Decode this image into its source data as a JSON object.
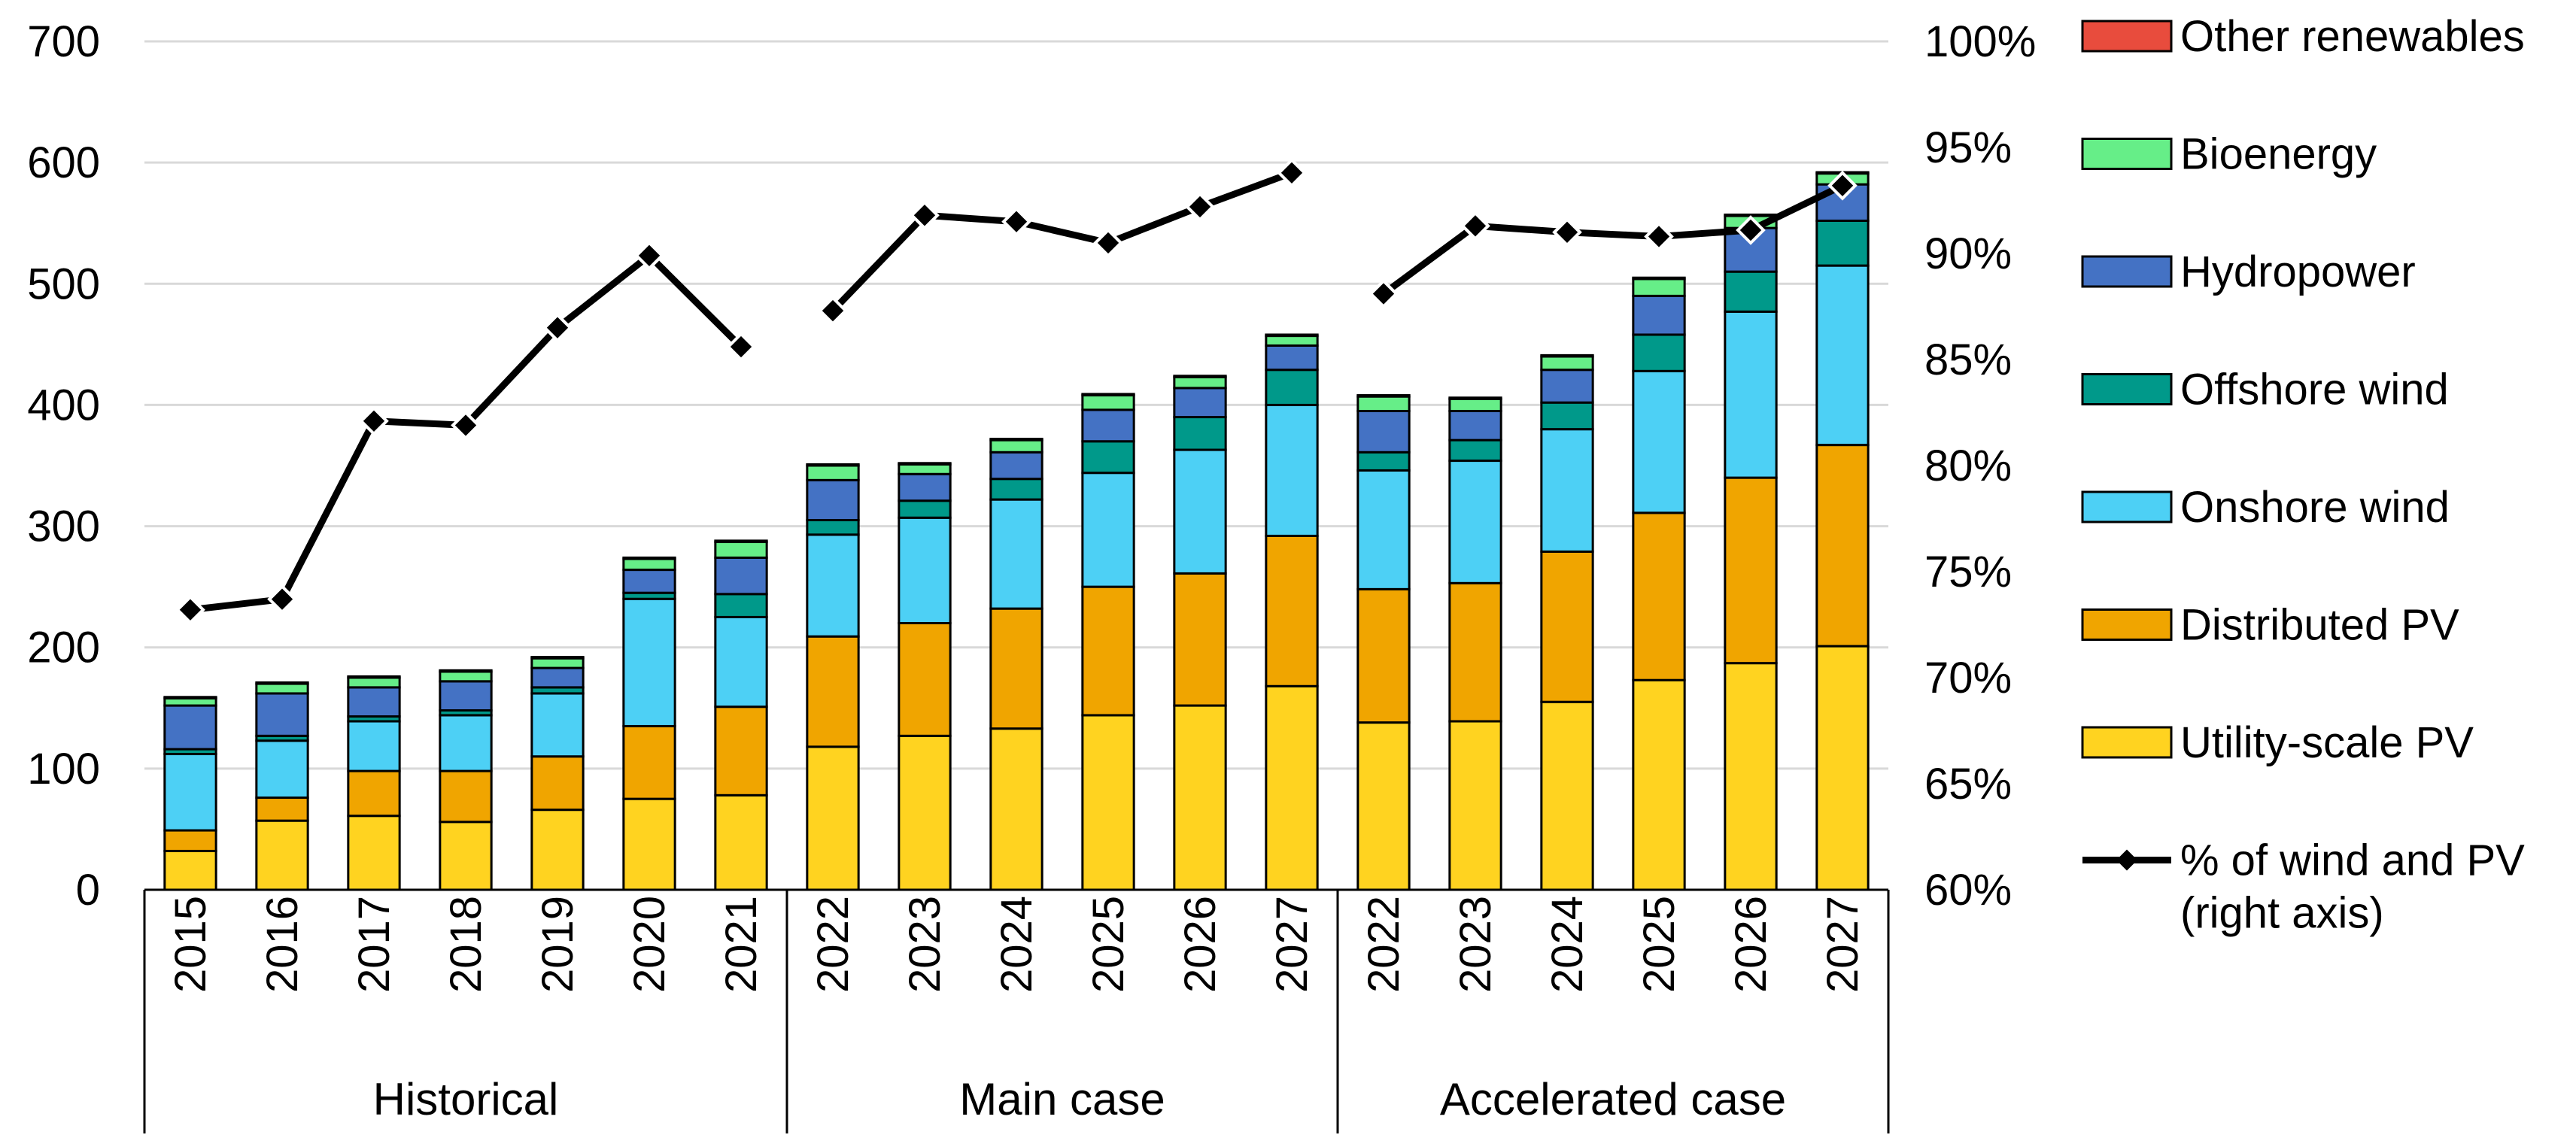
{
  "chart_data": {
    "type": "bar",
    "stacked": true,
    "title": "",
    "xlabel": "",
    "ylabel": "",
    "ylim": [
      0,
      700
    ],
    "y_ticks": [
      "0",
      "100",
      "200",
      "300",
      "400",
      "500",
      "600",
      "700"
    ],
    "y2lim": [
      60,
      100
    ],
    "y2_ticks": [
      "60%",
      "65%",
      "70%",
      "75%",
      "80%",
      "85%",
      "90%",
      "95%",
      "100%"
    ],
    "grid": true,
    "legend_position": "right",
    "categories": [
      "2015",
      "2016",
      "2017",
      "2018",
      "2019",
      "2020",
      "2021",
      "2022",
      "2023",
      "2024",
      "2025",
      "2026",
      "2027",
      "2022",
      "2023",
      "2024",
      "2025",
      "2026",
      "2027"
    ],
    "groups": [
      {
        "label": "Historical",
        "count": 7
      },
      {
        "label": "Main case",
        "count": 6
      },
      {
        "label": "Accelerated case",
        "count": 6
      }
    ],
    "series": [
      {
        "name": "Utility-scale PV",
        "color": "#FFD320",
        "values": [
          32,
          57,
          61,
          56,
          66,
          75,
          78,
          118,
          127,
          133,
          144,
          152,
          168,
          138,
          139,
          155,
          173,
          187,
          201
        ]
      },
      {
        "name": "Distributed PV",
        "color": "#F0A500",
        "values": [
          17,
          19,
          37,
          42,
          44,
          60,
          73,
          91,
          93,
          99,
          106,
          109,
          124,
          110,
          114,
          124,
          138,
          153,
          166
        ]
      },
      {
        "name": "Onshore wind",
        "color": "#4DD0F5",
        "values": [
          63,
          47,
          41,
          46,
          52,
          105,
          74,
          84,
          87,
          90,
          94,
          102,
          108,
          98,
          101,
          101,
          117,
          137,
          148
        ]
      },
      {
        "name": "Offshore wind",
        "color": "#00998A",
        "values": [
          4,
          4,
          4,
          4,
          5,
          5,
          19,
          12,
          14,
          17,
          26,
          27,
          29,
          15,
          17,
          22,
          30,
          33,
          37
        ]
      },
      {
        "name": "Hydropower",
        "color": "#4472C4",
        "values": [
          36,
          35,
          24,
          24,
          16,
          19,
          30,
          33,
          22,
          22,
          26,
          24,
          20,
          34,
          24,
          27,
          32,
          36,
          30
        ]
      },
      {
        "name": "Bioenergy",
        "color": "#66EE88",
        "values": [
          6,
          8,
          8,
          8,
          8,
          9,
          13,
          12,
          8,
          10,
          12,
          9,
          8,
          12,
          10,
          11,
          14,
          10,
          9
        ]
      },
      {
        "name": "Other renewables",
        "color": "#E84C3D",
        "values": [
          1,
          1,
          1,
          1,
          1,
          1,
          1,
          1,
          1,
          1,
          1,
          1,
          1,
          1,
          1,
          1,
          1,
          1,
          1
        ]
      }
    ],
    "line_series": {
      "name": "% of wind and PV",
      "legend_line1": "% of wind and PV",
      "legend_line2": "(right axis)",
      "axis": "right",
      "color": "#000000",
      "values": [
        73.2,
        73.7,
        82.1,
        81.9,
        86.5,
        89.9,
        85.6,
        87.3,
        91.8,
        91.5,
        90.5,
        92.2,
        93.8,
        88.1,
        91.3,
        91.0,
        90.8,
        91.1,
        93.2
      ],
      "segments": [
        [
          0,
          6
        ],
        [
          7,
          12
        ],
        [
          13,
          18
        ]
      ]
    }
  }
}
